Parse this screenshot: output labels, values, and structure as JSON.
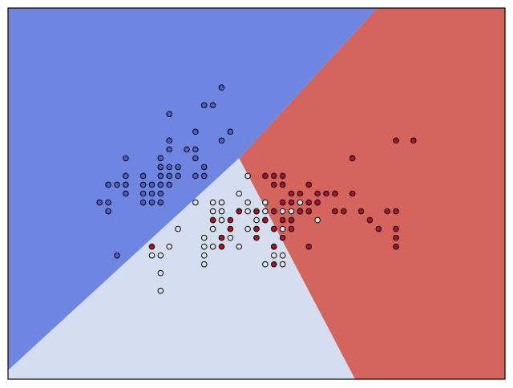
{
  "chart_data": {
    "type": "scatter",
    "subtype": "decision-regions",
    "title": "",
    "xlabel": "",
    "ylabel": "",
    "axes_visible": false,
    "grid": false,
    "xlim": [
      0,
      57
    ],
    "ylim": [
      0,
      42
    ],
    "colors": {
      "blue_region": "#6f86e0",
      "light_region": "#d5def0",
      "red_region": "#d5645d",
      "blue_point": "#4a5fcf",
      "light_point": "#dde3ee",
      "red_point": "#b10d2a",
      "point_edge": "#000000",
      "frame": "#000000"
    },
    "regions": [
      {
        "name": "class-0-region",
        "color": "blue_region",
        "polygon": [
          [
            0,
            42
          ],
          [
            42.3,
            42
          ],
          [
            26.5,
            25
          ],
          [
            0,
            1
          ]
        ]
      },
      {
        "name": "class-2-region",
        "color": "red_region",
        "polygon": [
          [
            42.3,
            42
          ],
          [
            57,
            42
          ],
          [
            57,
            0
          ],
          [
            39.8,
            0
          ],
          [
            26.5,
            25
          ]
        ]
      },
      {
        "name": "class-1-region",
        "color": "light_region",
        "polygon": [
          [
            0,
            1
          ],
          [
            26.5,
            25
          ],
          [
            39.8,
            0
          ],
          [
            0,
            0
          ]
        ]
      }
    ],
    "series": [
      {
        "name": "class-0",
        "color": "blue_point",
        "points": [
          [
            24.5,
            33
          ],
          [
            23.5,
            31
          ],
          [
            18.5,
            30
          ],
          [
            22.5,
            31
          ],
          [
            25.5,
            28
          ],
          [
            21.5,
            28
          ],
          [
            24.5,
            27
          ],
          [
            18.5,
            27
          ],
          [
            18.5,
            26
          ],
          [
            20.5,
            26
          ],
          [
            21.5,
            26
          ],
          [
            13.5,
            25
          ],
          [
            17.5,
            25
          ],
          [
            21.5,
            25
          ],
          [
            17.5,
            24
          ],
          [
            17.5,
            23
          ],
          [
            18.5,
            23
          ],
          [
            13.5,
            23
          ],
          [
            15.5,
            23
          ],
          [
            18.5,
            24
          ],
          [
            19.5,
            24
          ],
          [
            19.5,
            23
          ],
          [
            18.5,
            22
          ],
          [
            17.5,
            22
          ],
          [
            21.5,
            23
          ],
          [
            22.5,
            23
          ],
          [
            13.5,
            22
          ],
          [
            15.5,
            22
          ],
          [
            16.5,
            22
          ],
          [
            17.5,
            21
          ],
          [
            11.5,
            22
          ],
          [
            12.5,
            22
          ],
          [
            11.5,
            20
          ],
          [
            13.5,
            21
          ],
          [
            15.5,
            21
          ],
          [
            16.5,
            21
          ],
          [
            15.5,
            20
          ],
          [
            16.5,
            20
          ],
          [
            17.5,
            20
          ],
          [
            10.5,
            20
          ],
          [
            11.5,
            19
          ],
          [
            22.5,
            24
          ],
          [
            17.5,
            24
          ],
          [
            12.5,
            14
          ]
        ]
      },
      {
        "name": "class-1",
        "color": "light_point",
        "points": [
          [
            27.5,
            23
          ],
          [
            26.5,
            21
          ],
          [
            37.5,
            21
          ],
          [
            21.5,
            20
          ],
          [
            23.5,
            20
          ],
          [
            23.5,
            19
          ],
          [
            24.5,
            20
          ],
          [
            24.5,
            19
          ],
          [
            27.5,
            19
          ],
          [
            28.5,
            19
          ],
          [
            29.5,
            19
          ],
          [
            30.5,
            19
          ],
          [
            27.5,
            20
          ],
          [
            29.5,
            20
          ],
          [
            33.5,
            20
          ],
          [
            32.5,
            19
          ],
          [
            33.5,
            19
          ],
          [
            34.5,
            19
          ],
          [
            31.5,
            19
          ],
          [
            24.5,
            18
          ],
          [
            23.5,
            18
          ],
          [
            28.5,
            18
          ],
          [
            29.5,
            18
          ],
          [
            32.5,
            18
          ],
          [
            35.5,
            18
          ],
          [
            19.5,
            17
          ],
          [
            23.5,
            17
          ],
          [
            27.5,
            17
          ],
          [
            28.5,
            17
          ],
          [
            30.5,
            17
          ],
          [
            31.5,
            17
          ],
          [
            22.5,
            16
          ],
          [
            24.5,
            16
          ],
          [
            25.5,
            16
          ],
          [
            18.5,
            15
          ],
          [
            22.5,
            15
          ],
          [
            23.5,
            15
          ],
          [
            16.5,
            14
          ],
          [
            17.5,
            14
          ],
          [
            22.5,
            14
          ],
          [
            22.5,
            13
          ],
          [
            26.5,
            15
          ],
          [
            30.5,
            15
          ],
          [
            30.5,
            14
          ],
          [
            29.5,
            13
          ],
          [
            31.5,
            14
          ],
          [
            31.5,
            13
          ],
          [
            17.5,
            12
          ],
          [
            17.5,
            10
          ]
        ]
      },
      {
        "name": "class-2",
        "color": "red_point",
        "points": [
          [
            44.5,
            27
          ],
          [
            46.5,
            27
          ],
          [
            39.5,
            25
          ],
          [
            29.5,
            23
          ],
          [
            30.5,
            23
          ],
          [
            31.5,
            22
          ],
          [
            34.5,
            22
          ],
          [
            31.5,
            23
          ],
          [
            30.5,
            22
          ],
          [
            32.5,
            21
          ],
          [
            33.5,
            21
          ],
          [
            36.5,
            21
          ],
          [
            35.5,
            21
          ],
          [
            39.5,
            21
          ],
          [
            37.5,
            21
          ],
          [
            31.5,
            20
          ],
          [
            32.5,
            20
          ],
          [
            34.5,
            20
          ],
          [
            35.5,
            20
          ],
          [
            26.5,
            19
          ],
          [
            28.5,
            19
          ],
          [
            30.5,
            19
          ],
          [
            33.5,
            19
          ],
          [
            31.5,
            18
          ],
          [
            23.5,
            18
          ],
          [
            25.5,
            18
          ],
          [
            29.5,
            18
          ],
          [
            32.5,
            18
          ],
          [
            33.5,
            19
          ],
          [
            34.5,
            19
          ],
          [
            38.5,
            19
          ],
          [
            40.5,
            19
          ],
          [
            43.5,
            19
          ],
          [
            44.5,
            19
          ],
          [
            35.5,
            20
          ],
          [
            37.5,
            19
          ],
          [
            41.5,
            18
          ],
          [
            42.5,
            17
          ],
          [
            25.5,
            17
          ],
          [
            26.5,
            19
          ],
          [
            28.5,
            17
          ],
          [
            30.5,
            17
          ],
          [
            32.5,
            17
          ],
          [
            44.5,
            17
          ],
          [
            24.5,
            16
          ],
          [
            28.5,
            16
          ],
          [
            31.5,
            16
          ],
          [
            44.5,
            16
          ],
          [
            24.5,
            15
          ],
          [
            30.5,
            15
          ],
          [
            34.5,
            15
          ],
          [
            44.5,
            15
          ],
          [
            16.5,
            15
          ],
          [
            30.5,
            13
          ]
        ]
      }
    ]
  }
}
